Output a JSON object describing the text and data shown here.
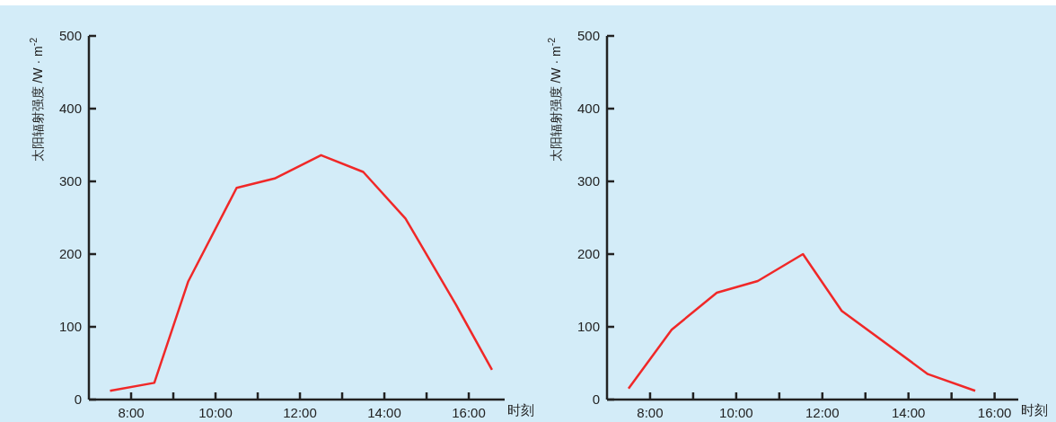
{
  "chart_data": [
    {
      "type": "line",
      "xlabel": "时刻",
      "ylabel": "太阳辐射强度 /W · m$^{-2}$",
      "x": [
        7.5,
        8.55,
        9.35,
        10.5,
        11.4,
        12.5,
        13.5,
        14.5,
        15.7,
        16.55
      ],
      "values": [
        12,
        23,
        162,
        291,
        304,
        336,
        313,
        249,
        130,
        41
      ],
      "color": "#f02828",
      "line_style": "solid",
      "marker": "none",
      "grid": false,
      "xlim": [
        7,
        16.85
      ],
      "ylim": [
        0,
        500
      ],
      "xticks": [
        {
          "value": 8,
          "label": "8:00"
        },
        {
          "value": 9,
          "label": null
        },
        {
          "value": 10,
          "label": "10:00"
        },
        {
          "value": 11,
          "label": null
        },
        {
          "value": 12,
          "label": "12:00"
        },
        {
          "value": 13,
          "label": null
        },
        {
          "value": 14,
          "label": "14:00"
        },
        {
          "value": 15,
          "label": null
        },
        {
          "value": 16,
          "label": "16:00"
        }
      ],
      "yticks": [
        0,
        100,
        200,
        300,
        400,
        500
      ]
    },
    {
      "type": "line",
      "xlabel": "时刻",
      "ylabel": "太阳辐射强度 /W · m$^{-2}$",
      "x": [
        7.5,
        8.5,
        9.55,
        10.5,
        11.55,
        12.45,
        14.45,
        15.55
      ],
      "values": [
        15,
        96,
        147,
        163,
        200,
        122,
        35,
        12
      ],
      "color": "#f02828",
      "line_style": "solid",
      "marker": "none",
      "grid": false,
      "xlim": [
        7,
        16.55
      ],
      "ylim": [
        0,
        500
      ],
      "xticks": [
        {
          "value": 8,
          "label": "8:00"
        },
        {
          "value": 9,
          "label": null
        },
        {
          "value": 10,
          "label": "10:00"
        },
        {
          "value": 11,
          "label": null
        },
        {
          "value": 12,
          "label": "12:00"
        },
        {
          "value": 13,
          "label": null
        },
        {
          "value": 14,
          "label": "14:00"
        },
        {
          "value": 15,
          "label": null
        },
        {
          "value": 16,
          "label": "16:00"
        }
      ],
      "yticks": [
        0,
        100,
        200,
        300,
        400,
        500
      ]
    }
  ]
}
